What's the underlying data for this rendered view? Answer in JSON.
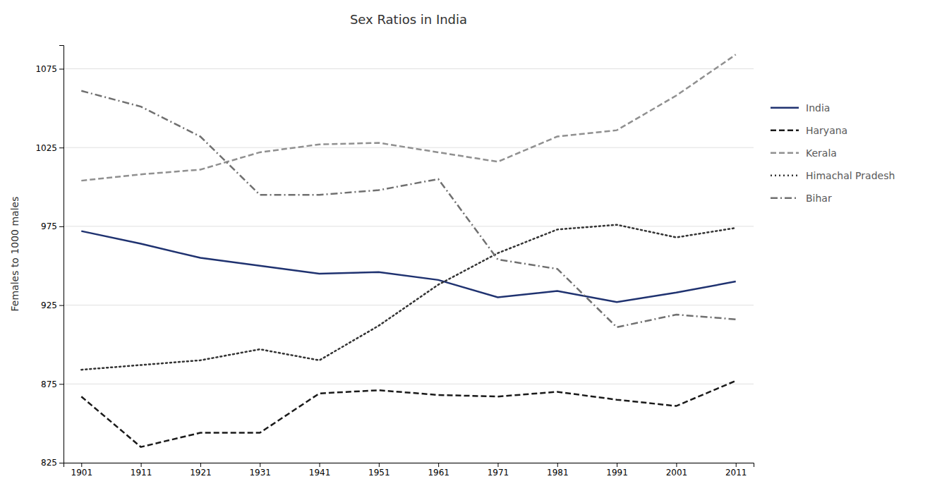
{
  "chart_data": {
    "type": "line",
    "title": "Sex Ratios in India",
    "ylabel": "Females to 1000 males",
    "x": [
      1901,
      1911,
      1921,
      1931,
      1941,
      1951,
      1961,
      1971,
      1981,
      1991,
      2001,
      2011
    ],
    "series": [
      {
        "name": "India",
        "color": "#1f3270",
        "line_style": "solid",
        "values": [
          972,
          964,
          955,
          950,
          945,
          946,
          941,
          930,
          934,
          927,
          933,
          940
        ]
      },
      {
        "name": "Haryana",
        "color": "#1a1a1a",
        "line_style": "dashed",
        "values": [
          867,
          835,
          844,
          844,
          869,
          871,
          868,
          867,
          870,
          865,
          861,
          877
        ]
      },
      {
        "name": "Kerala",
        "color": "#909090",
        "line_style": "dashed",
        "values": [
          1004,
          1008,
          1011,
          1022,
          1027,
          1028,
          1022,
          1016,
          1032,
          1036,
          1058,
          1084
        ]
      },
      {
        "name": "Himachal Pradesh",
        "color": "#333333",
        "line_style": "dotted",
        "values": [
          884,
          887,
          890,
          897,
          890,
          912,
          938,
          958,
          973,
          976,
          968,
          974
        ]
      },
      {
        "name": "Bihar",
        "color": "#707070",
        "line_style": "dashdot",
        "values": [
          1061,
          1051,
          1032,
          995,
          995,
          998,
          1005,
          954,
          948,
          911,
          919,
          916
        ]
      }
    ],
    "xlim": [
      1898,
      2014
    ],
    "xticks": [
      1901,
      1911,
      1921,
      1931,
      1941,
      1951,
      1961,
      1971,
      1981,
      1991,
      2001,
      2011
    ],
    "ylim": [
      825,
      1090
    ],
    "yticks": [
      825,
      875,
      925,
      975,
      1025,
      1075
    ],
    "grid": true,
    "legend": "right"
  }
}
